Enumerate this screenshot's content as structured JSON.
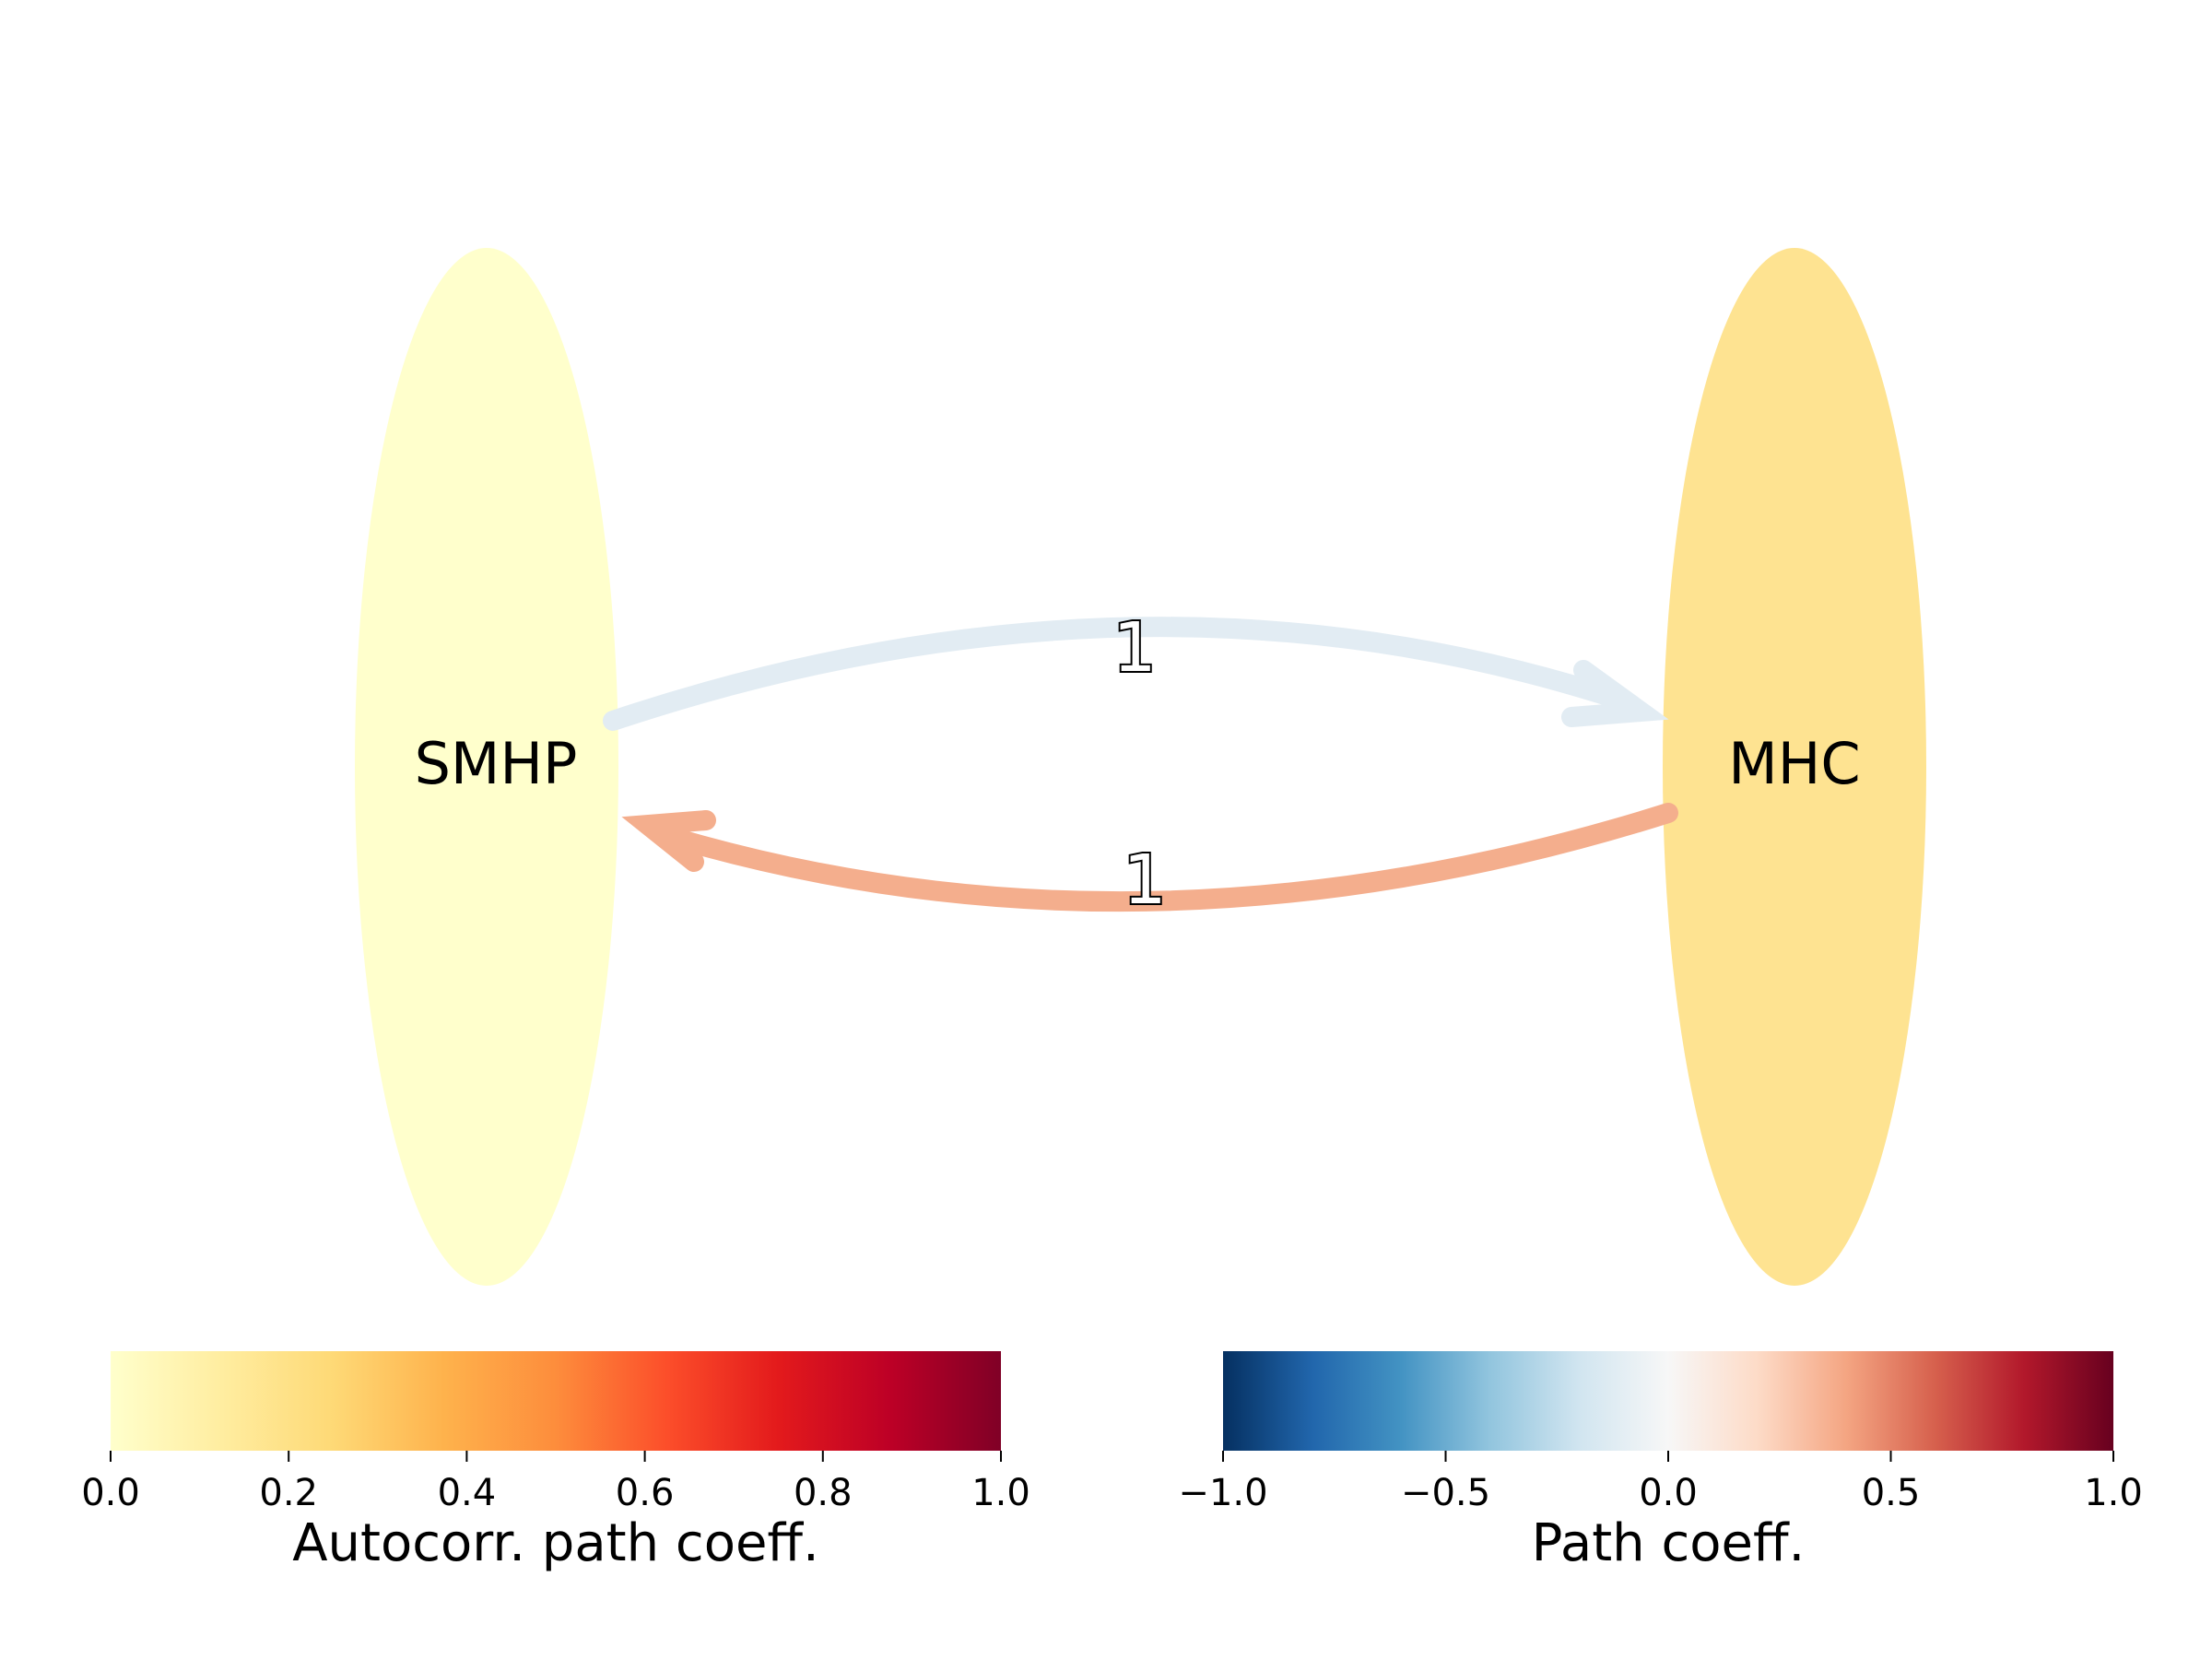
{
  "nodes": [
    {
      "id": "SMHP",
      "label": "SMHP",
      "color": "#ffffcc"
    },
    {
      "id": "MHC",
      "label": "MHC",
      "color": "#fee391"
    }
  ],
  "edges": [
    {
      "from": "SMHP",
      "to": "MHC",
      "label": "1",
      "color": "#e2ecf3"
    },
    {
      "from": "MHC",
      "to": "SMHP",
      "label": "1",
      "color": "#f4ae8d"
    }
  ],
  "colorbars": {
    "autocorr": {
      "label": "Autocorr. path coeff.",
      "ticks": [
        "0.0",
        "0.2",
        "0.4",
        "0.6",
        "0.8",
        "1.0"
      ],
      "colors": [
        "#ffffcc",
        "#ffeda0",
        "#fed976",
        "#feb24c",
        "#fd8d3c",
        "#fc4e2a",
        "#e31a1c",
        "#bd0026",
        "#800026"
      ]
    },
    "path": {
      "label": "Path coeff.",
      "ticks": [
        "−1.0",
        "−0.5",
        "0.0",
        "0.5",
        "1.0"
      ],
      "colors": [
        "#053061",
        "#2166ac",
        "#4393c3",
        "#92c5de",
        "#d1e5f0",
        "#f7f7f7",
        "#fddbc7",
        "#f4a582",
        "#d6604d",
        "#b2182b",
        "#67001f"
      ]
    }
  }
}
